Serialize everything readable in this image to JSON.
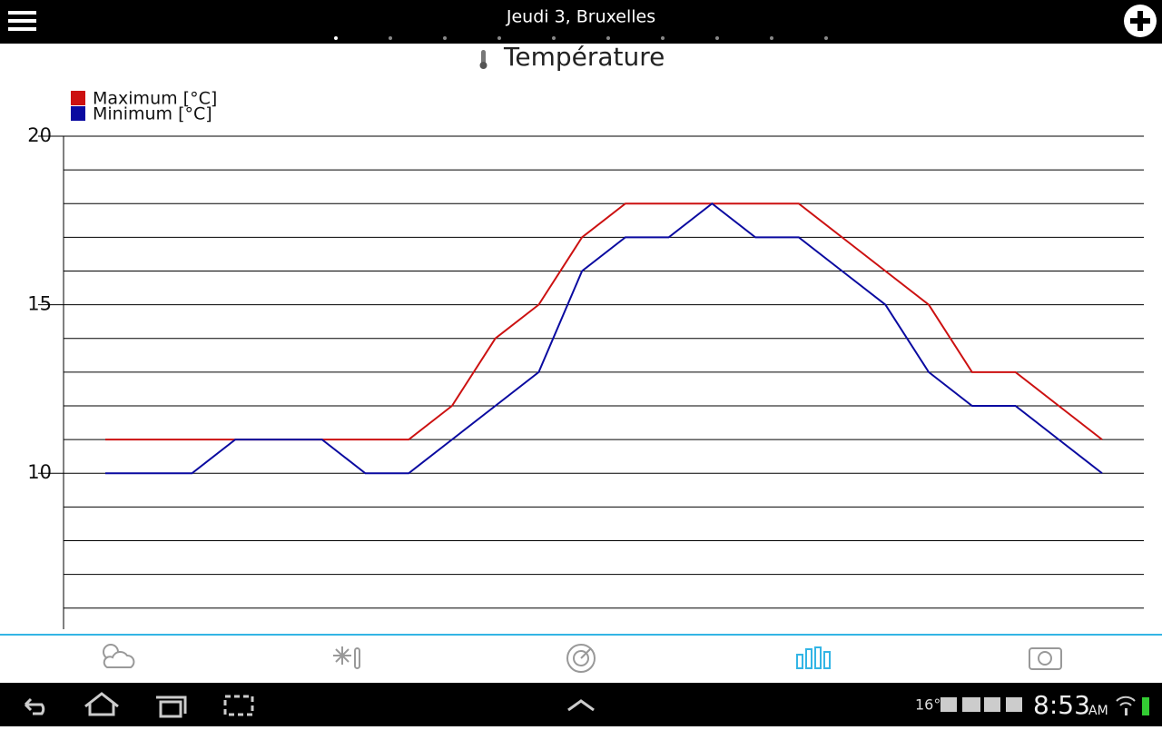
{
  "app_bar": {
    "title": "Jeudi 3, Bruxelles"
  },
  "chart_data": {
    "type": "line",
    "title": "Température",
    "categories": [
      null,
      null,
      null,
      null,
      null,
      null,
      null,
      null,
      null,
      null,
      null,
      null,
      null,
      null,
      null,
      null,
      null,
      null,
      null,
      null,
      null,
      null,
      null,
      null
    ],
    "series": [
      {
        "name": "Maximum [°C]",
        "color": "#cc1111",
        "values": [
          11,
          11,
          11,
          11,
          11,
          11,
          11,
          11,
          12,
          14,
          15,
          17,
          18,
          18,
          18,
          18,
          18,
          17,
          16,
          15,
          13,
          13,
          12,
          11
        ]
      },
      {
        "name": "Minimum [°C]",
        "color": "#0a0aa0",
        "values": [
          10,
          10,
          10,
          11,
          11,
          11,
          10,
          10,
          11,
          12,
          13,
          16,
          17,
          17,
          18,
          17,
          17,
          16,
          15,
          13,
          12,
          12,
          11,
          10
        ]
      }
    ],
    "ylim": [
      5.4,
      20
    ],
    "yticks": [
      10,
      15,
      20
    ],
    "minor_yticks": [
      6,
      7,
      8,
      9,
      11,
      12,
      13,
      14,
      16,
      17,
      18,
      19
    ],
    "grid": true
  },
  "status_bar": {
    "temperature": "16°",
    "time": "8:53",
    "meridiem": "AM"
  }
}
